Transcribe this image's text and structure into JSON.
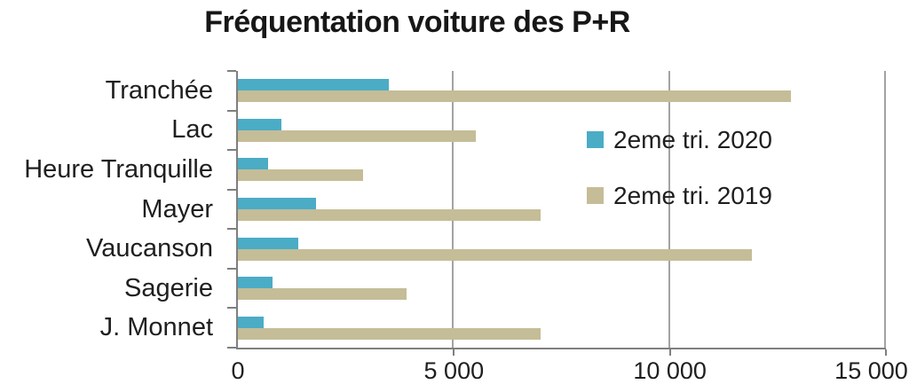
{
  "chart_data": {
    "type": "bar",
    "orientation": "horizontal",
    "title": "Fréquentation voiture des P+R",
    "categories": [
      "Tranchée",
      "Lac",
      "Heure Tranquille",
      "Mayer",
      "Vaucanson",
      "Sagerie",
      "J. Monnet"
    ],
    "series": [
      {
        "name": "2eme tri. 2020",
        "color": "#4BACC6",
        "values": [
          3500,
          1000,
          700,
          1800,
          1400,
          800,
          600
        ]
      },
      {
        "name": "2eme tri. 2019",
        "color": "#C4BD97",
        "values": [
          12800,
          5500,
          2900,
          7000,
          11900,
          3900,
          7000
        ]
      }
    ],
    "x_axis": {
      "min": 0,
      "max": 15000,
      "tick_interval": 5000,
      "tick_labels": [
        "0",
        "5 000",
        "10 000",
        "15 000"
      ]
    },
    "legend": {
      "position": "middle-right",
      "entries": [
        "2eme tri. 2020",
        "2eme tri. 2019"
      ]
    },
    "grid": true,
    "colors": {
      "axis": "#7f7f7f",
      "gridline": "#a3a3a3",
      "text": "#1f1f1f",
      "title": "#171717"
    }
  }
}
